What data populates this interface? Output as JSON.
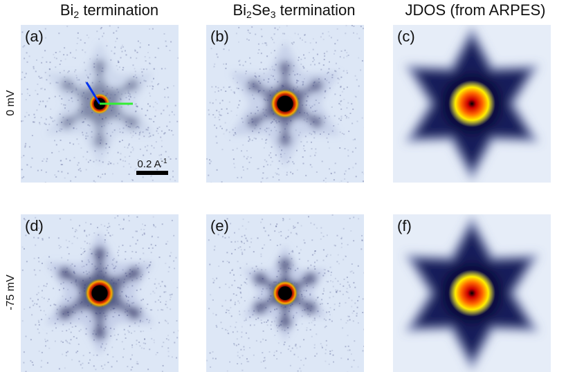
{
  "columns": [
    {
      "pre": "Bi",
      "sub1": "2",
      "mid": "",
      "sub2": "",
      "post": " termination"
    },
    {
      "pre": "Bi",
      "sub1": "2",
      "mid": "Se",
      "sub2": "3",
      "post": " termination"
    },
    {
      "pre": "JDOS (from ARPES)",
      "sub1": "",
      "mid": "",
      "sub2": "",
      "post": ""
    }
  ],
  "rows": [
    "0 mV",
    "-75 mV"
  ],
  "panels": [
    {
      "label": "(a)",
      "kind": "qpi"
    },
    {
      "label": "(b)",
      "kind": "qpi"
    },
    {
      "label": "(c)",
      "kind": "jdos"
    },
    {
      "label": "(d)",
      "kind": "qpi"
    },
    {
      "label": "(e)",
      "kind": "qpi"
    },
    {
      "label": "(f)",
      "kind": "jdos"
    }
  ],
  "scalebar": {
    "value": "0.2 A",
    "exponent": "-1"
  },
  "colors": {
    "line_blue": "#0033ee",
    "line_green": "#33ee33",
    "qpi_background": "#dde7f6",
    "jdos_background": "#e6edf8"
  }
}
